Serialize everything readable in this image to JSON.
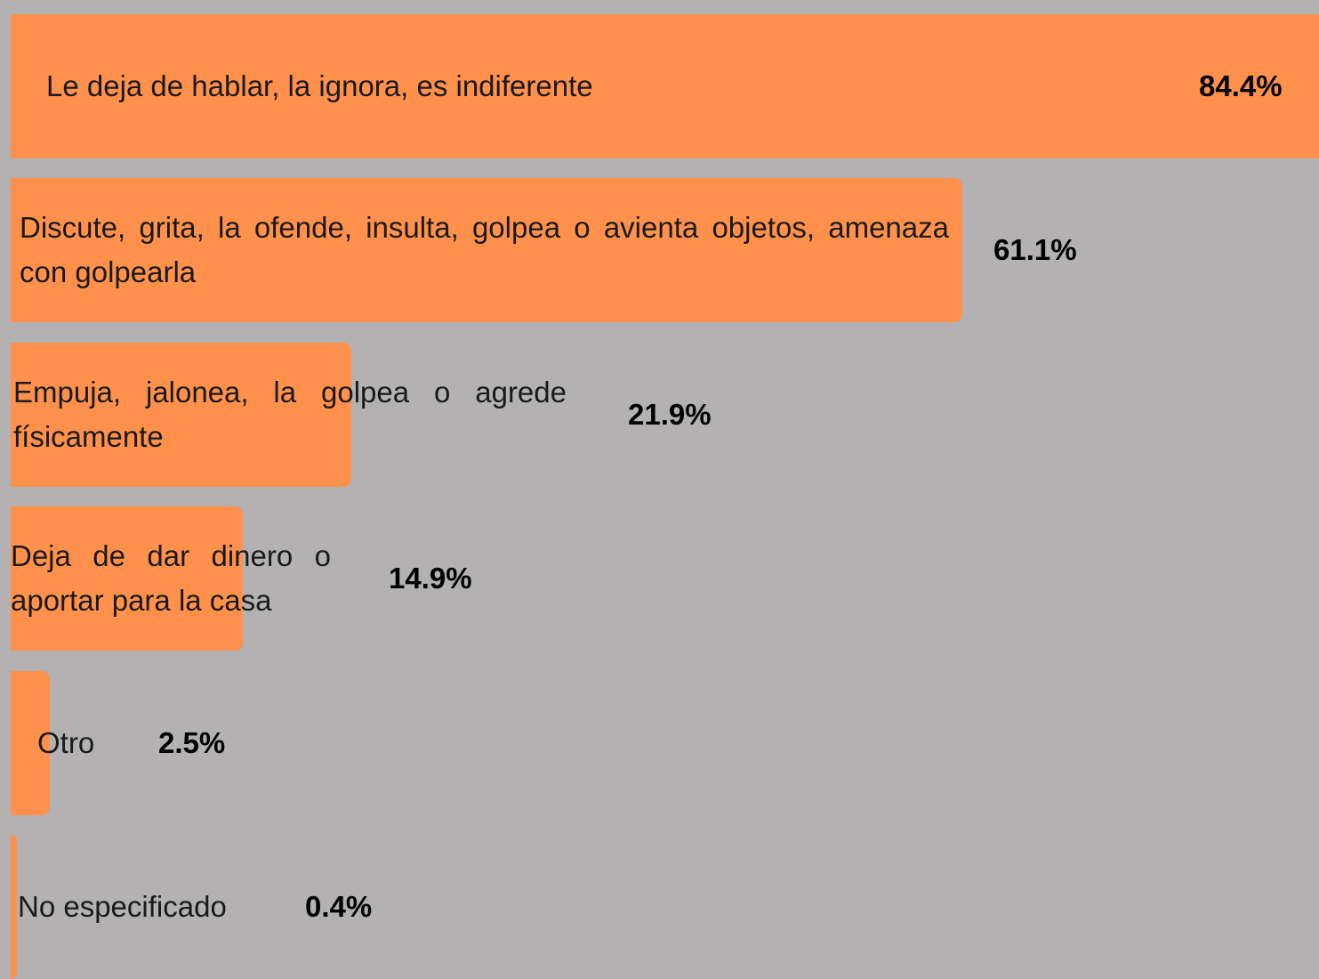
{
  "chart_data": {
    "type": "bar",
    "orientation": "horizontal",
    "color": "#ff914d",
    "categories": [
      "Le deja de hablar, la ignora, es indiferente",
      "Discute, grita, la ofende, insulta, golpea o avienta objetos, amenaza con golpearla",
      "Empuja, jalonea, la golpea o agrede físicamente",
      "Deja de dar dinero o aportar para la casa",
      "Otro",
      "No especificado"
    ],
    "values": [
      84.4,
      61.1,
      21.9,
      14.9,
      2.5,
      0.4
    ],
    "value_labels": [
      "84.4%",
      "61.1%",
      "21.9%",
      "14.9%",
      "2.5%",
      "0.4%"
    ]
  }
}
